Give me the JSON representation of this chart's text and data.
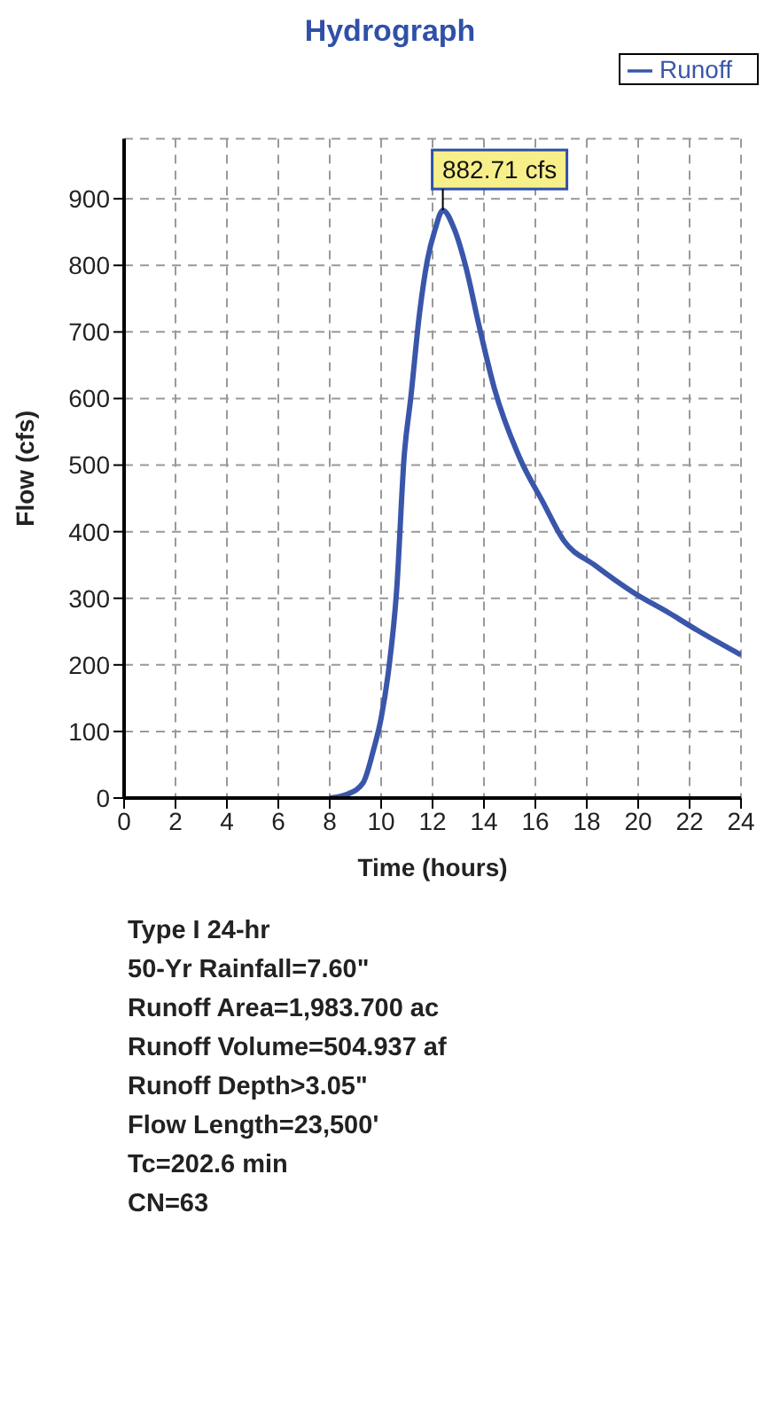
{
  "chart_data": {
    "type": "line",
    "title": "Hydrograph",
    "xlabel": "Time  (hours)",
    "ylabel": "Flow  (cfs)",
    "x": [
      8,
      8.7,
      9.3,
      9.7,
      10,
      10.3,
      10.6,
      10.9,
      11.15,
      11.5,
      11.8,
      12.1,
      12.4,
      12.85,
      13.3,
      13.8,
      14.4,
      15.4,
      16.3,
      17.1,
      18.3,
      19.8,
      21.2,
      22.3,
      24
    ],
    "series": [
      {
        "name": "Runoff",
        "color": "#3a56aa",
        "values": [
          0,
          6,
          23,
          72,
          120,
          195,
          310,
          515,
          600,
          730,
          808,
          854,
          882.71,
          854,
          797,
          711,
          616,
          510,
          444,
          387,
          350,
          309,
          278,
          252,
          215
        ]
      }
    ],
    "xlim": [
      0,
      24
    ],
    "xticks": [
      0,
      2,
      4,
      6,
      8,
      10,
      12,
      14,
      16,
      18,
      20,
      22,
      24
    ],
    "ylim": [
      0,
      990
    ],
    "yticks": [
      0,
      100,
      200,
      300,
      400,
      500,
      600,
      700,
      800,
      900
    ],
    "annotations": [
      {
        "text": "882.71 cfs",
        "x": 12.4,
        "y": 882.71
      },
      "Type I 24-hr",
      "50-Yr Rainfall=7.60\"",
      "Runoff Area=1,983.700 ac",
      "Runoff Volume=504.937 af",
      "Runoff Depth>3.05\"",
      "Flow Length=23,500'",
      "Tc=202.6 min",
      "CN=63"
    ],
    "grid": true,
    "legend": "top right",
    "marker": "none",
    "line_style": "solid"
  }
}
